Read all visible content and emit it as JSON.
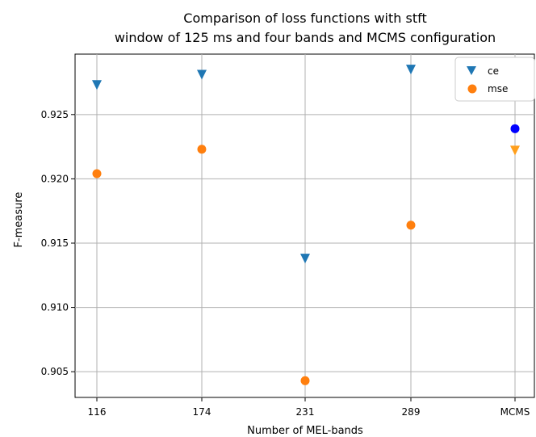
{
  "chart_data": {
    "type": "scatter",
    "title": "Comparison of loss functions with stft",
    "subtitle": "window of 125 ms and four bands and MCMS configuration",
    "xlabel": "Number of MEL-bands",
    "ylabel": "F-measure",
    "categories": [
      "116",
      "174",
      "231",
      "289",
      "MCMS"
    ],
    "ylim": [
      0.903,
      0.9297
    ],
    "yticks": [
      "0.905",
      "0.910",
      "0.915",
      "0.920",
      "0.925"
    ],
    "grid": true,
    "legend_position": "top-right",
    "series": [
      {
        "name": "ce",
        "marker": "triangle-down",
        "color": "#1f77b4",
        "values": [
          0.9273,
          0.9281,
          0.9138,
          0.9285,
          null
        ]
      },
      {
        "name": "mse",
        "marker": "circle",
        "color": "#ff7f0e",
        "values": [
          0.9204,
          0.9223,
          0.9043,
          0.9164,
          null
        ]
      }
    ],
    "extra_points": [
      {
        "category": "MCMS",
        "value": 0.9239,
        "marker": "circle",
        "color": "#0000ff"
      },
      {
        "category": "MCMS",
        "value": 0.9222,
        "marker": "triangle-down",
        "color": "#ff9f1c"
      }
    ]
  }
}
